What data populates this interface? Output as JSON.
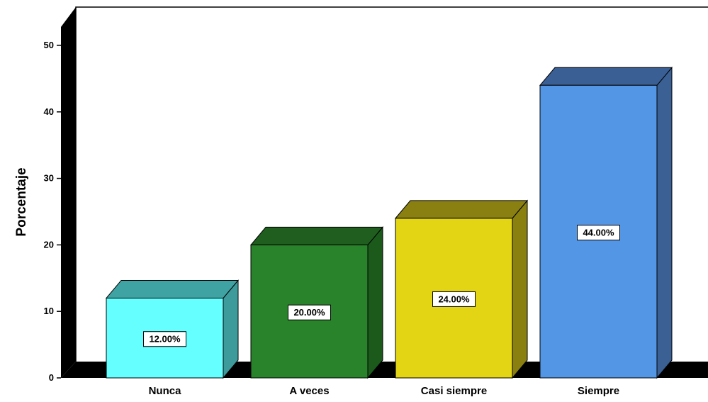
{
  "chart_data": {
    "type": "bar",
    "title": "",
    "xlabel": "",
    "ylabel": "Porcentaje",
    "categories": [
      "Nunca",
      "A veces",
      "Casi siempre",
      "Siempre"
    ],
    "values": [
      12,
      20,
      24,
      44
    ],
    "data_labels": [
      "12.00%",
      "20.00%",
      "24.00%",
      "44.00%"
    ],
    "ylim": [
      0,
      55
    ],
    "yticks": [
      0,
      10,
      20,
      30,
      40,
      50
    ],
    "style": "3d",
    "grid": false,
    "colors": {
      "Nunca": {
        "front": "#66ffff",
        "top": "#3fa3a3",
        "side": "#3e9b9b"
      },
      "A veces": {
        "front": "#28832a",
        "top": "#1f5e1f",
        "side": "#1c5a1c"
      },
      "Casi siempre": {
        "front": "#e3d414",
        "top": "#8a8012",
        "side": "#8a8010"
      },
      "Siempre": {
        "front": "#5496e6",
        "top": "#3a5f95",
        "side": "#3a6094"
      }
    }
  }
}
